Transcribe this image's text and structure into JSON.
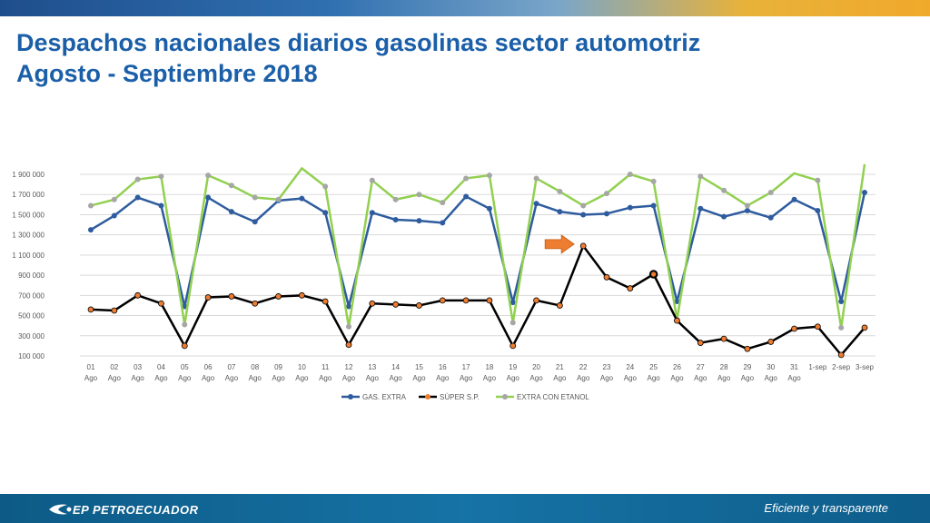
{
  "slide": {
    "title_line1": "Despachos nacionales diarios gasolinas sector automotriz",
    "title_line2": "Agosto - Septiembre 2018",
    "footer_logo": "EP PETROECUADOR",
    "slogan": "Eficiente y transparente"
  },
  "colors": {
    "title": "#1b5fa8",
    "gas_extra": "#2e5c9e",
    "super": "#000000",
    "super_marker": "#ed7d31",
    "etanol": "#92d050",
    "etanol_marker": "#a6a6a6",
    "arrow": "#ed7d31"
  },
  "chart_data": {
    "type": "line",
    "categories": [
      {
        "day": "01",
        "month": "Ago"
      },
      {
        "day": "02",
        "month": "Ago"
      },
      {
        "day": "03",
        "month": "Ago"
      },
      {
        "day": "04",
        "month": "Ago"
      },
      {
        "day": "05",
        "month": "Ago"
      },
      {
        "day": "06",
        "month": "Ago"
      },
      {
        "day": "07",
        "month": "Ago"
      },
      {
        "day": "08",
        "month": "Ago"
      },
      {
        "day": "09",
        "month": "Ago"
      },
      {
        "day": "10",
        "month": "Ago"
      },
      {
        "day": "11",
        "month": "Ago"
      },
      {
        "day": "12",
        "month": "Ago"
      },
      {
        "day": "13",
        "month": "Ago"
      },
      {
        "day": "14",
        "month": "Ago"
      },
      {
        "day": "15",
        "month": "Ago"
      },
      {
        "day": "16",
        "month": "Ago"
      },
      {
        "day": "17",
        "month": "Ago"
      },
      {
        "day": "18",
        "month": "Ago"
      },
      {
        "day": "19",
        "month": "Ago"
      },
      {
        "day": "20",
        "month": "Ago"
      },
      {
        "day": "21",
        "month": "Ago"
      },
      {
        "day": "22",
        "month": "Ago"
      },
      {
        "day": "23",
        "month": "Ago"
      },
      {
        "day": "24",
        "month": "Ago"
      },
      {
        "day": "25",
        "month": "Ago"
      },
      {
        "day": "26",
        "month": "Ago"
      },
      {
        "day": "27",
        "month": "Ago"
      },
      {
        "day": "28",
        "month": "Ago"
      },
      {
        "day": "29",
        "month": "Ago"
      },
      {
        "day": "30",
        "month": "Ago"
      },
      {
        "day": "31",
        "month": "Ago"
      },
      {
        "day": "1-sep",
        "month": ""
      },
      {
        "day": "2-sep",
        "month": ""
      },
      {
        "day": "3-sep",
        "month": ""
      }
    ],
    "ylim": [
      100000,
      1900000
    ],
    "yticks": [
      100000,
      300000,
      500000,
      700000,
      900000,
      1100000,
      1300000,
      1500000,
      1700000,
      1900000
    ],
    "ytick_labels": [
      "100 000",
      "300 000",
      "500 000",
      "700 000",
      "900 000",
      "1 100 000",
      "1 300 000",
      "1 500 000",
      "1 700 000",
      "1 900 000"
    ],
    "grid": true,
    "legend_position": "bottom",
    "series": [
      {
        "key": "gas_extra",
        "name": "GAS. EXTRA",
        "values": [
          1350000,
          1490000,
          1670000,
          1590000,
          590000,
          1670000,
          1530000,
          1430000,
          1640000,
          1660000,
          1520000,
          590000,
          1520000,
          1450000,
          1440000,
          1420000,
          1680000,
          1560000,
          630000,
          1610000,
          1530000,
          1500000,
          1510000,
          1570000,
          1590000,
          640000,
          1560000,
          1480000,
          1540000,
          1470000,
          1650000,
          1540000,
          640000,
          1720000
        ]
      },
      {
        "key": "super",
        "name": "SÚPER S.P.",
        "values": [
          560000,
          550000,
          700000,
          620000,
          200000,
          680000,
          690000,
          620000,
          690000,
          700000,
          640000,
          210000,
          620000,
          610000,
          600000,
          650000,
          650000,
          650000,
          200000,
          650000,
          600000,
          1190000,
          880000,
          770000,
          910000,
          450000,
          230000,
          270000,
          170000,
          240000,
          370000,
          390000,
          110000,
          380000
        ]
      },
      {
        "key": "etanol",
        "name": "EXTRA CON ETANOL",
        "values": [
          1590000,
          1650000,
          1850000,
          1880000,
          410000,
          1890000,
          1790000,
          1670000,
          1650000,
          1960000,
          1780000,
          390000,
          1840000,
          1650000,
          1700000,
          1620000,
          1860000,
          1890000,
          430000,
          1860000,
          1730000,
          1590000,
          1710000,
          1900000,
          1830000,
          460000,
          1880000,
          1740000,
          1590000,
          1720000,
          1910000,
          1840000,
          380000,
          2000000
        ]
      }
    ],
    "annotation": {
      "type": "arrow",
      "category_index": 21,
      "series": "super"
    }
  }
}
